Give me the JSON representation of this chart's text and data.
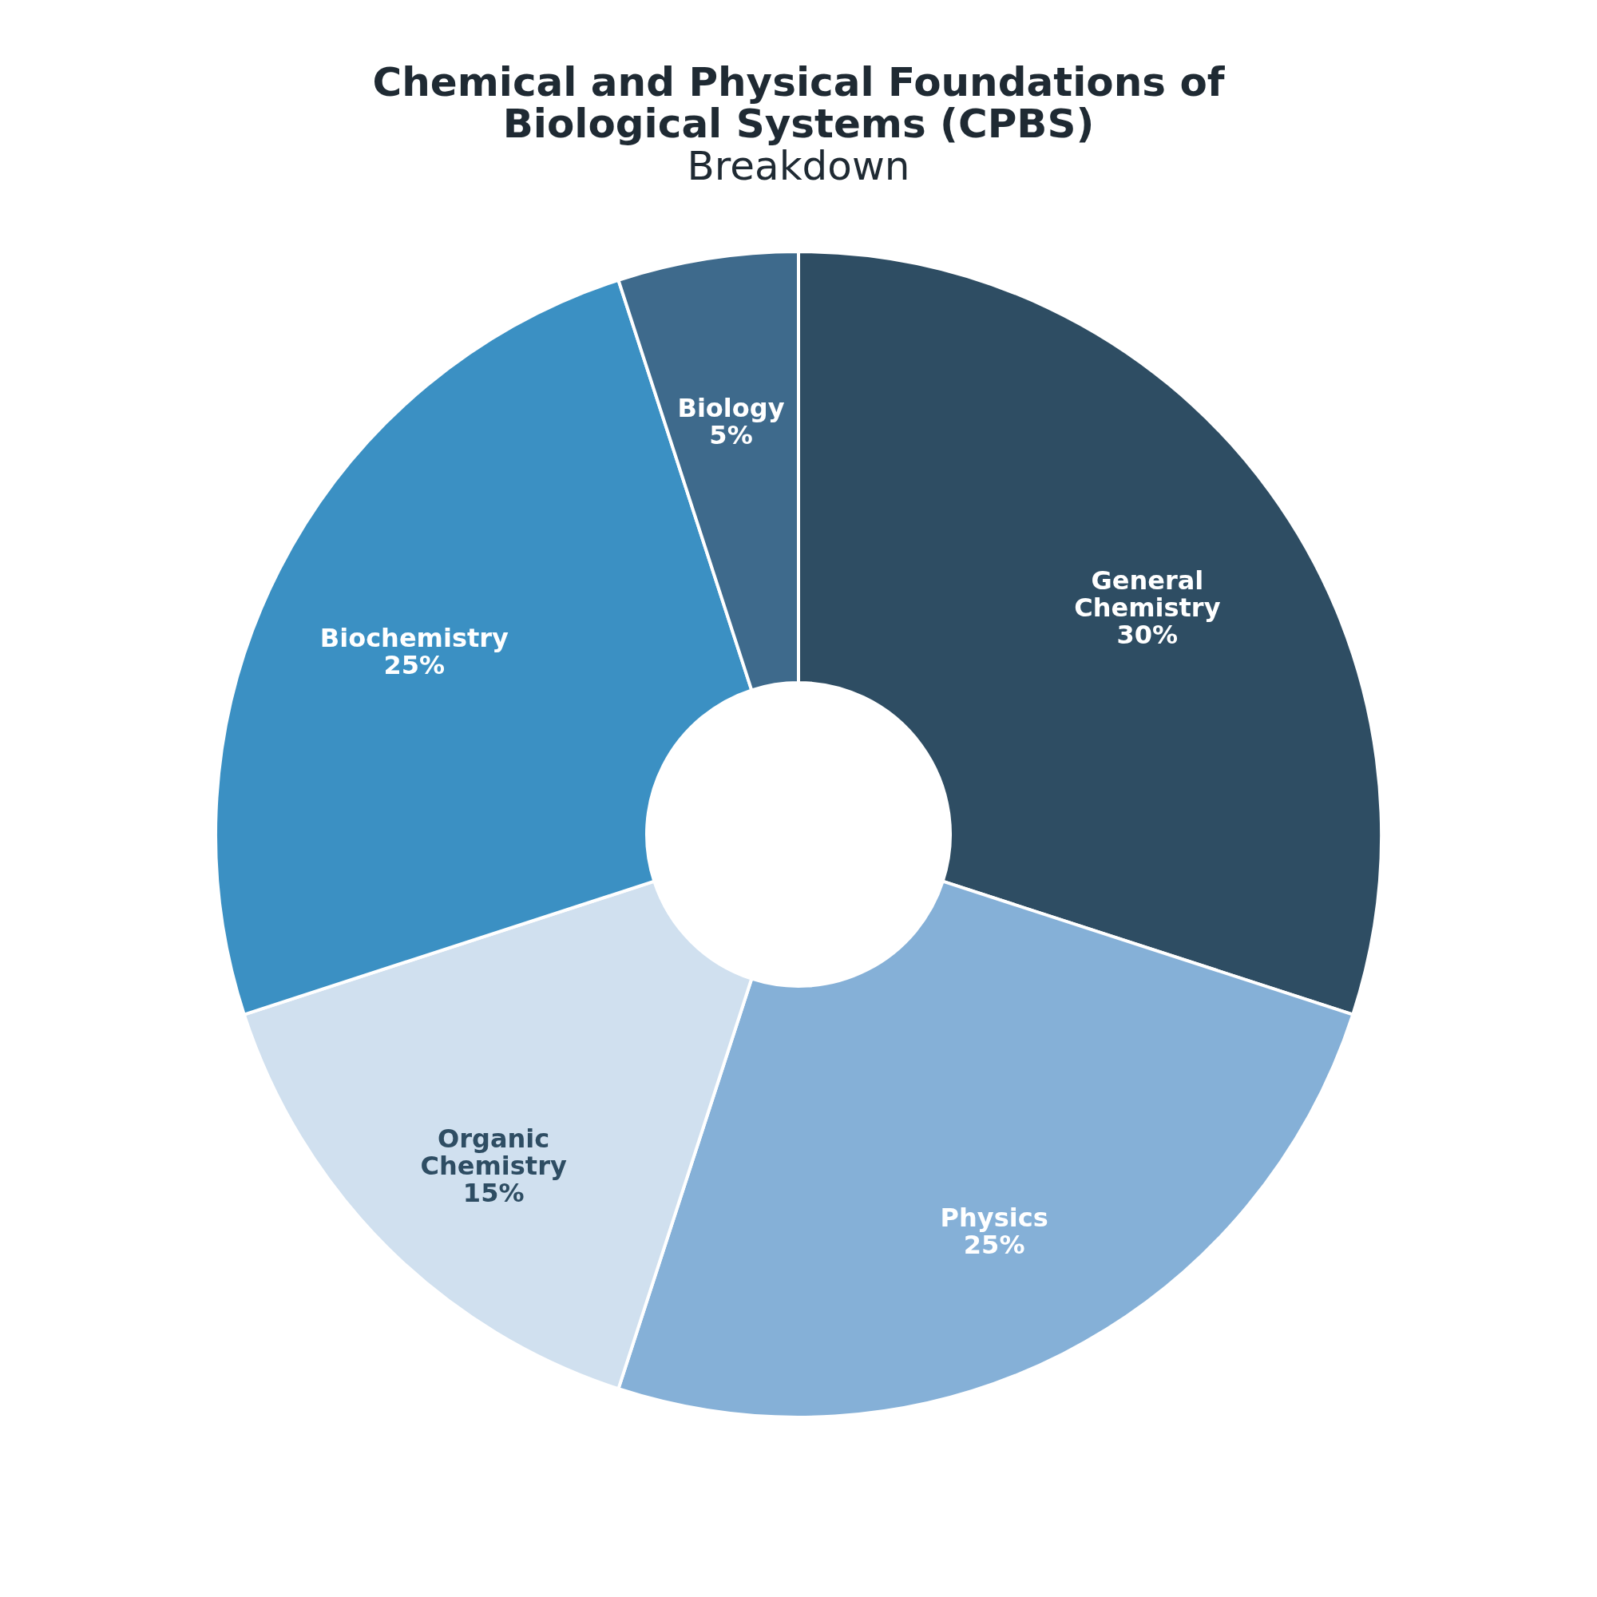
{
  "chart_data": {
    "type": "donut",
    "title": "Chemical and Physical Foundations of Biological Systems (CPBS)",
    "subtitle": "Breakdown",
    "categories": [
      "General Chemistry",
      "Physics",
      "Organic Chemistry",
      "Biochemistry",
      "Biology"
    ],
    "values": [
      30,
      25,
      15,
      25,
      5
    ],
    "value_labels": [
      "30%",
      "25%",
      "15%",
      "25%",
      "5%"
    ],
    "colors": [
      "#2e4d63",
      "#85b0d7",
      "#d0e0ef",
      "#3b90c3",
      "#3e6a8c"
    ],
    "legend": false
  }
}
